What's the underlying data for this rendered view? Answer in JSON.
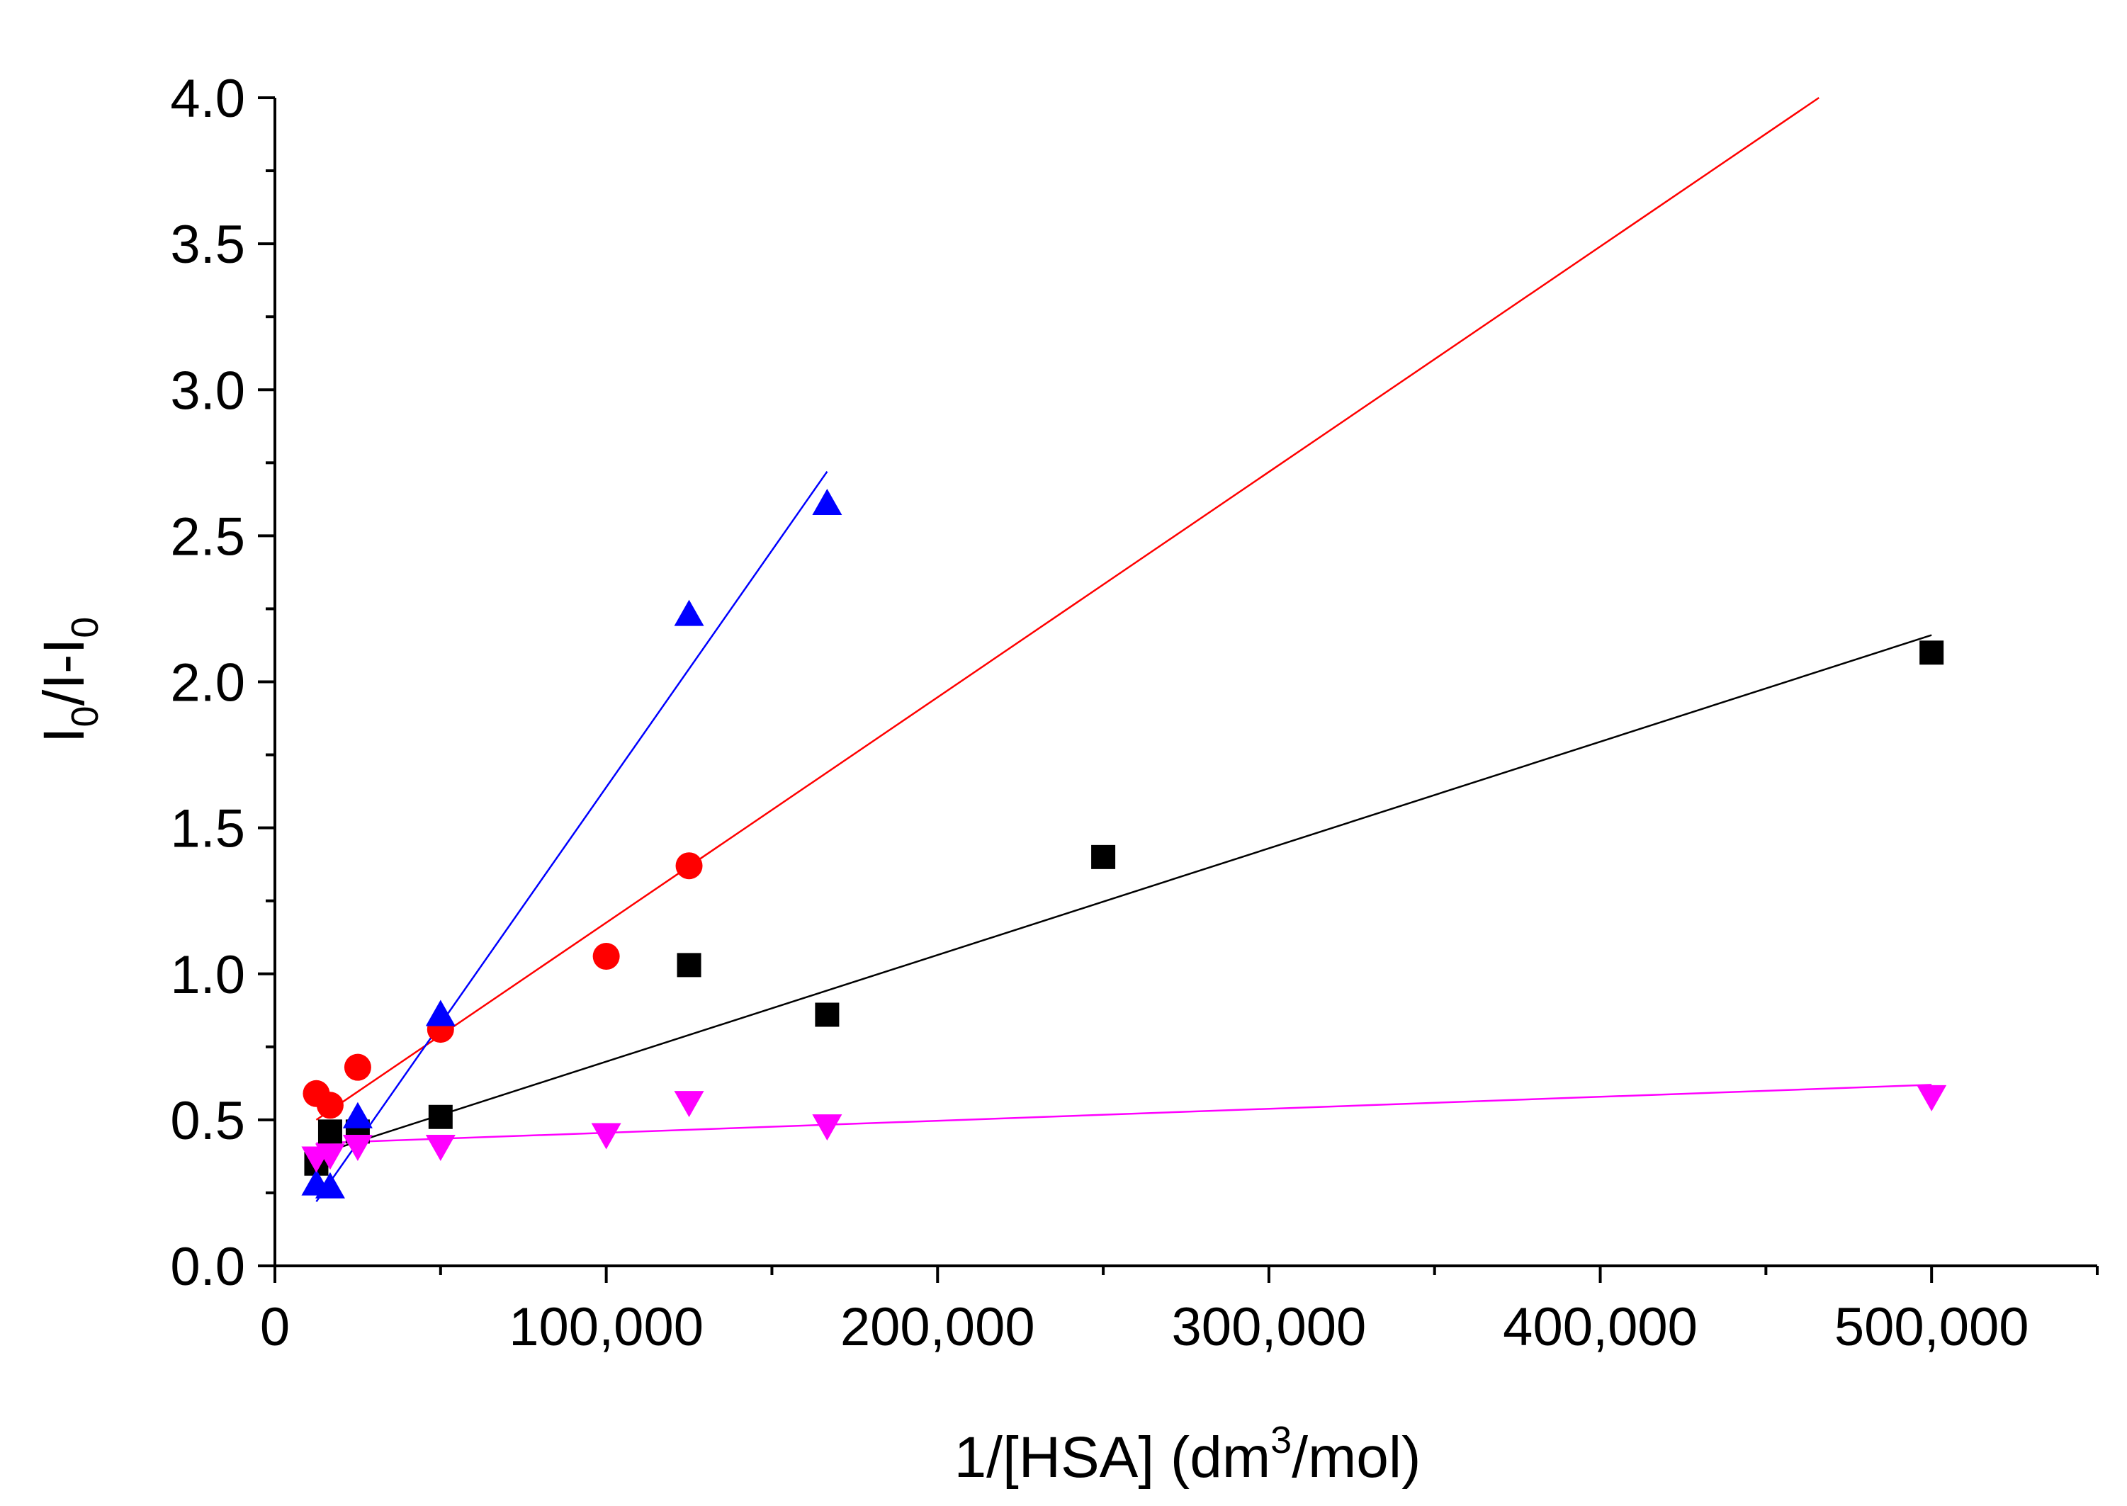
{
  "chart_data": {
    "type": "scatter",
    "title": "",
    "xlabel": {
      "before": "1/[HSA] (dm",
      "sup": "3",
      "after": "/mol)"
    },
    "ylabel": {
      "p1": "I",
      "s1": "0",
      "p2": "/I-I",
      "s2": "0"
    },
    "xlim": [
      0,
      550000
    ],
    "ylim": [
      0,
      4.0
    ],
    "x_ticks": [
      0,
      100000,
      200000,
      300000,
      400000,
      500000
    ],
    "x_tick_labels": [
      "0",
      "100,000",
      "200,000",
      "300,000",
      "400,000",
      "500,000"
    ],
    "y_ticks": [
      0,
      0.5,
      1.0,
      1.5,
      2.0,
      2.5,
      3.0,
      3.5,
      4.0
    ],
    "y_tick_labels": [
      "0.0",
      "0.5",
      "1.0",
      "1.5",
      "2.0",
      "2.5",
      "3.0",
      "3.5",
      "4.0"
    ],
    "grid": false,
    "series": [
      {
        "name": "black squares",
        "marker": "square",
        "color": "#000000",
        "x": [
          12500,
          16667,
          25000,
          50000,
          125000,
          166667,
          250000,
          500000
        ],
        "y": [
          0.35,
          0.46,
          0.46,
          0.51,
          1.03,
          0.86,
          1.4,
          2.1
        ],
        "fit": {
          "x": [
            12500,
            500000
          ],
          "y": [
            0.38,
            2.16
          ]
        }
      },
      {
        "name": "red circles",
        "marker": "circle",
        "color": "#ff0000",
        "x": [
          12500,
          16667,
          25000,
          50000,
          100000,
          125000
        ],
        "y": [
          0.59,
          0.55,
          0.68,
          0.81,
          1.06,
          1.37
        ],
        "fit": {
          "x": [
            12500,
            466000
          ],
          "y": [
            0.5,
            4.0
          ]
        }
      },
      {
        "name": "blue up-triangles",
        "marker": "triangle-up",
        "color": "#0000ff",
        "x": [
          12500,
          16667,
          25000,
          50000,
          125000,
          166667
        ],
        "y": [
          0.28,
          0.27,
          0.51,
          0.86,
          2.23,
          2.61
        ],
        "fit": {
          "x": [
            12500,
            166667
          ],
          "y": [
            0.22,
            2.72
          ]
        }
      },
      {
        "name": "magenta down-triangles",
        "marker": "triangle-down",
        "color": "#ff00ff",
        "x": [
          12500,
          16667,
          25000,
          50000,
          100000,
          125000,
          166667,
          500000
        ],
        "y": [
          0.37,
          0.38,
          0.41,
          0.41,
          0.45,
          0.56,
          0.48,
          0.58
        ],
        "fit": {
          "x": [
            12500,
            500000
          ],
          "y": [
            0.42,
            0.62
          ]
        }
      }
    ]
  }
}
